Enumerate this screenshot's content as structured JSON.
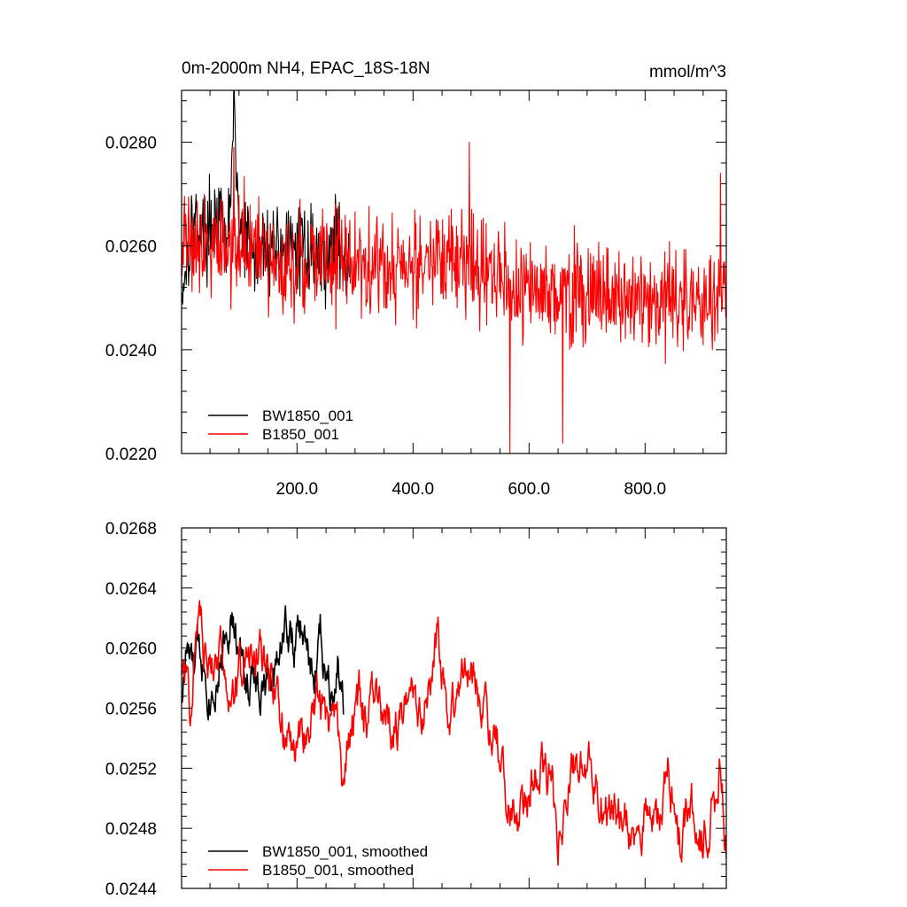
{
  "figure": {
    "title_left": "0m-2000m NH4, EPAC_18S-18N",
    "title_right": "mmol/m^3"
  },
  "colors": {
    "bw": "#000000",
    "b": "#ff0000",
    "axis": "#000000"
  },
  "chart_data": [
    {
      "type": "line",
      "panel": "top",
      "title": "0m-2000m NH4, EPAC_18S-18N",
      "units": "mmol/m^3",
      "xlabel": "",
      "ylabel": "",
      "xlim": [
        1,
        940
      ],
      "ylim": [
        0.022,
        0.029
      ],
      "yticks": [
        0.022,
        0.024,
        0.026,
        0.028
      ],
      "ytick_labels": [
        "0.0220",
        "0.0240",
        "0.0260",
        "0.0280"
      ],
      "xticks": [
        200,
        400,
        600,
        800
      ],
      "xtick_labels": [
        "200.0",
        "400.0",
        "600.0",
        "800.0"
      ],
      "legend_position": "bottom-left",
      "series": [
        {
          "name": "BW1850_001",
          "color": "#000000",
          "x_start": 1,
          "x_step": 1,
          "n": 290,
          "points": [
            [
              1,
              0.0251
            ],
            [
              20,
              0.0265
            ],
            [
              40,
              0.0262
            ],
            [
              60,
              0.0266
            ],
            [
              80,
              0.0259
            ],
            [
              91,
              0.0286
            ],
            [
              100,
              0.0263
            ],
            [
              130,
              0.0258
            ],
            [
              160,
              0.0261
            ],
            [
              190,
              0.0259
            ],
            [
              220,
              0.026
            ],
            [
              250,
              0.0257
            ],
            [
              270,
              0.0262
            ],
            [
              290,
              0.0256
            ]
          ],
          "noise_amplitude": 0.0012
        },
        {
          "name": "B1850_001",
          "color": "#ff0000",
          "x_start": 1,
          "x_step": 1,
          "n": 940,
          "points": [
            [
              1,
              0.0262
            ],
            [
              50,
              0.0261
            ],
            [
              100,
              0.026
            ],
            [
              150,
              0.0257
            ],
            [
              200,
              0.0256
            ],
            [
              250,
              0.0258
            ],
            [
              300,
              0.0257
            ],
            [
              350,
              0.0256
            ],
            [
              400,
              0.0256
            ],
            [
              450,
              0.0257
            ],
            [
              500,
              0.0257
            ],
            [
              550,
              0.0253
            ],
            [
              600,
              0.0251
            ],
            [
              650,
              0.0252
            ],
            [
              700,
              0.0251
            ],
            [
              750,
              0.025
            ],
            [
              800,
              0.0249
            ],
            [
              850,
              0.0249
            ],
            [
              900,
              0.0249
            ],
            [
              940,
              0.025
            ]
          ],
          "noise_amplitude": 0.0015,
          "noted_extremes": [
            [
              91,
              0.0279
            ],
            [
              497,
              0.028
            ],
            [
              567,
              0.022
            ],
            [
              658,
              0.0222
            ],
            [
              930,
              0.0274
            ]
          ]
        }
      ]
    },
    {
      "type": "line",
      "panel": "bottom",
      "title": "",
      "xlabel": "",
      "ylabel": "",
      "xlim": [
        1,
        940
      ],
      "ylim": [
        0.0244,
        0.0268
      ],
      "yticks": [
        0.0244,
        0.0248,
        0.0252,
        0.0256,
        0.026,
        0.0264,
        0.0268
      ],
      "ytick_labels": [
        "0.0244",
        "0.0248",
        "0.0252",
        "0.0256",
        "0.0260",
        "0.0264",
        "0.0268"
      ],
      "xticks": [
        200,
        400,
        600,
        800
      ],
      "legend_position": "bottom-left",
      "series": [
        {
          "name": "BW1850_001, smoothed",
          "color": "#000000",
          "x_start": 1,
          "x_step": 1,
          "n": 280,
          "points": [
            [
              1,
              0.0257
            ],
            [
              10,
              0.026
            ],
            [
              20,
              0.0258
            ],
            [
              35,
              0.026
            ],
            [
              50,
              0.0258
            ],
            [
              70,
              0.026
            ],
            [
              85,
              0.0263
            ],
            [
              100,
              0.0259
            ],
            [
              115,
              0.0258
            ],
            [
              130,
              0.0258
            ],
            [
              145,
              0.0257
            ],
            [
              160,
              0.0258
            ],
            [
              170,
              0.0261
            ],
            [
              180,
              0.0262
            ],
            [
              195,
              0.026
            ],
            [
              210,
              0.0261
            ],
            [
              220,
              0.0259
            ],
            [
              230,
              0.0258
            ],
            [
              240,
              0.0261
            ],
            [
              250,
              0.0259
            ],
            [
              260,
              0.0258
            ],
            [
              270,
              0.026
            ],
            [
              280,
              0.0257
            ]
          ],
          "noise_amplitude": 0.0002
        },
        {
          "name": "B1850_001, smoothed",
          "color": "#ff0000",
          "x_start": 1,
          "x_step": 1,
          "n": 940,
          "points": [
            [
              1,
              0.0259
            ],
            [
              15,
              0.0256
            ],
            [
              30,
              0.0263
            ],
            [
              45,
              0.0258
            ],
            [
              60,
              0.0261
            ],
            [
              80,
              0.0259
            ],
            [
              100,
              0.0258
            ],
            [
              120,
              0.0259
            ],
            [
              140,
              0.0259
            ],
            [
              160,
              0.0257
            ],
            [
              180,
              0.0254
            ],
            [
              200,
              0.0253
            ],
            [
              220,
              0.0255
            ],
            [
              240,
              0.0257
            ],
            [
              260,
              0.0255
            ],
            [
              280,
              0.0251
            ],
            [
              300,
              0.0256
            ],
            [
              330,
              0.0256
            ],
            [
              360,
              0.0255
            ],
            [
              390,
              0.0256
            ],
            [
              420,
              0.0257
            ],
            [
              440,
              0.0261
            ],
            [
              460,
              0.0256
            ],
            [
              480,
              0.0257
            ],
            [
              500,
              0.0258
            ],
            [
              520,
              0.0256
            ],
            [
              540,
              0.0255
            ],
            [
              560,
              0.0251
            ],
            [
              580,
              0.0249
            ],
            [
              600,
              0.0251
            ],
            [
              620,
              0.0252
            ],
            [
              640,
              0.025
            ],
            [
              650,
              0.0247
            ],
            [
              670,
              0.0252
            ],
            [
              700,
              0.0252
            ],
            [
              720,
              0.0251
            ],
            [
              740,
              0.0249
            ],
            [
              760,
              0.0249
            ],
            [
              780,
              0.0248
            ],
            [
              800,
              0.0249
            ],
            [
              820,
              0.0248
            ],
            [
              840,
              0.0252
            ],
            [
              860,
              0.0248
            ],
            [
              880,
              0.0249
            ],
            [
              900,
              0.0248
            ],
            [
              920,
              0.025
            ],
            [
              930,
              0.0253
            ],
            [
              940,
              0.0247
            ]
          ],
          "noise_amplitude": 0.0002
        }
      ]
    }
  ]
}
